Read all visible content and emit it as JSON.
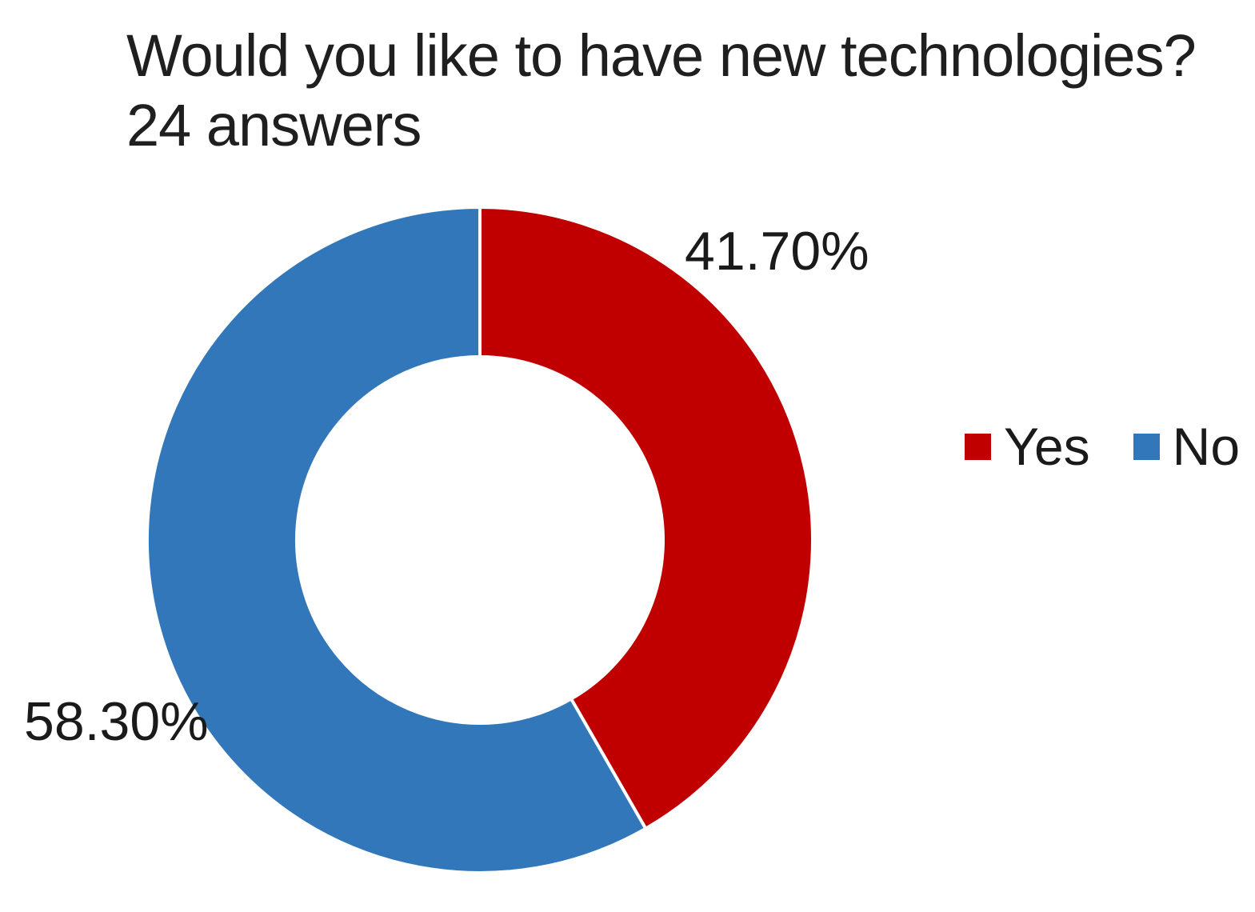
{
  "header": {
    "title": "Would you like to have new technologies?",
    "subtitle": "24 answers"
  },
  "chart_data": {
    "type": "pie",
    "subtype": "donut",
    "title": "Would you like to have new technologies?",
    "subtitle": "24 answers",
    "total_answers": 24,
    "categories": [
      "Yes",
      "No"
    ],
    "values": [
      41.7,
      58.3
    ],
    "slices": [
      {
        "label": "Yes",
        "value": 41.7,
        "display": "41.70%",
        "color": "#C00000"
      },
      {
        "label": "No",
        "value": 58.3,
        "display": "58.30%",
        "color": "#3277BA"
      }
    ],
    "start_angle_deg": 0,
    "direction": "clockwise",
    "donut_hole_ratio": 0.55,
    "slice_gap_color": "#ffffff",
    "legend_position": "right",
    "background_color": "#ffffff",
    "text_color": "#1f1f1f"
  }
}
